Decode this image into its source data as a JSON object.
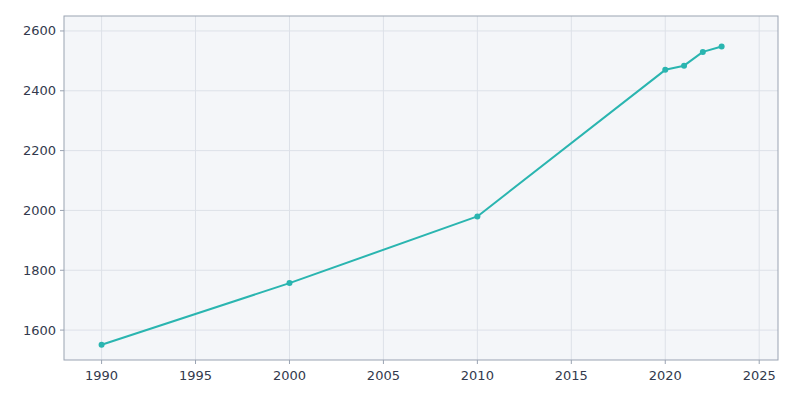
{
  "chart_data": {
    "type": "line",
    "x": [
      1990,
      2000,
      2010,
      2020,
      2021,
      2022,
      2023
    ],
    "values": [
      1551,
      1757,
      1980,
      2470,
      2484,
      2530,
      2548
    ],
    "color": "#2ab5b0",
    "marker": "circle",
    "xlim": [
      1988,
      2026
    ],
    "ylim": [
      1500,
      2650
    ],
    "xticks": [
      1990,
      1995,
      2000,
      2005,
      2010,
      2015,
      2020,
      2025
    ],
    "yticks": [
      1600,
      1800,
      2000,
      2200,
      2400,
      2600
    ],
    "grid": true
  }
}
